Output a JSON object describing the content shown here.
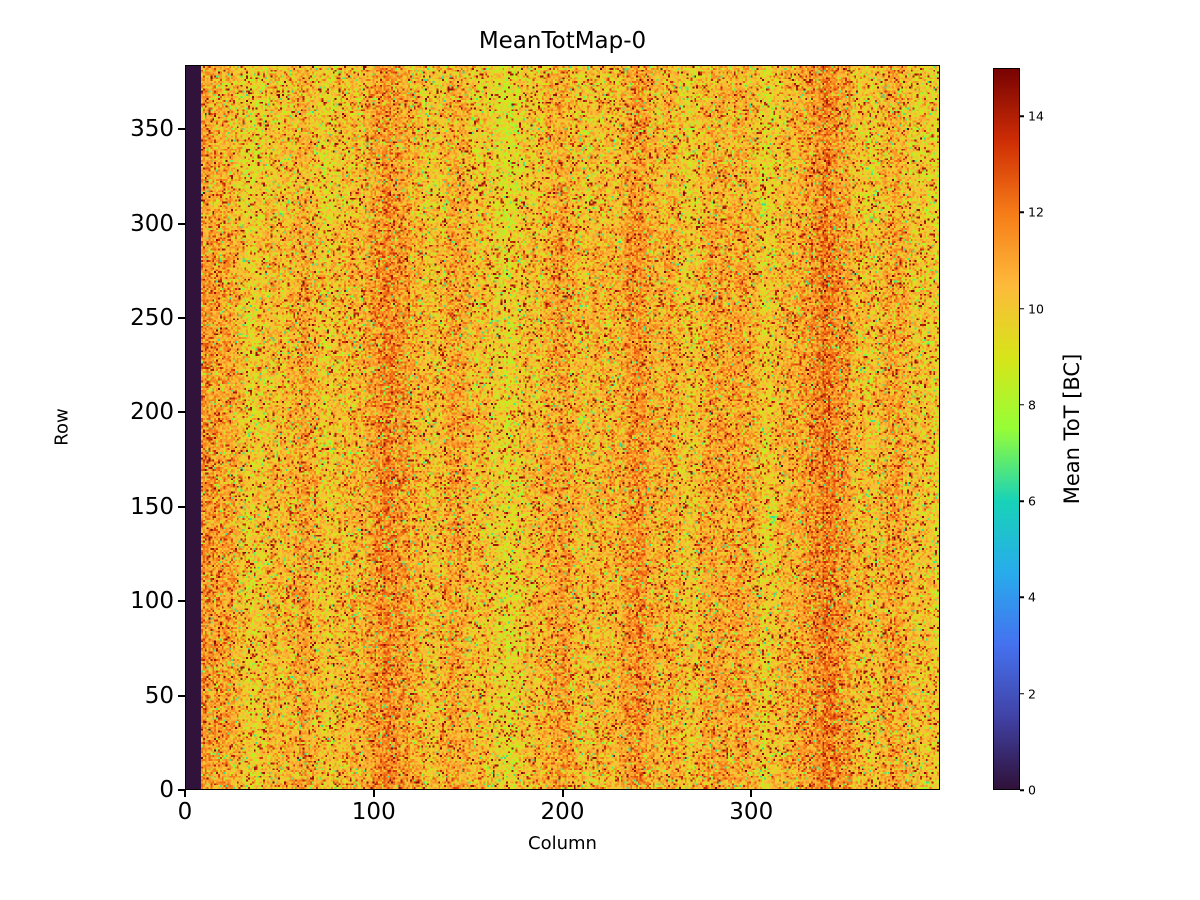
{
  "figure": {
    "background_color": "#ffffff",
    "axis_color": "#000000"
  },
  "chart_data": {
    "type": "heatmap",
    "title": "MeanTotMap-0",
    "xlabel": "Column",
    "ylabel": "Row",
    "x_range": [
      0,
      400
    ],
    "y_range": [
      0,
      384
    ],
    "xticks": [
      0,
      100,
      200,
      300
    ],
    "yticks": [
      0,
      50,
      100,
      150,
      200,
      250,
      300,
      350
    ],
    "grid": false,
    "colorbar": {
      "label": "Mean ToT [BC]",
      "ticks": [
        0,
        2,
        4,
        6,
        8,
        10,
        12,
        14
      ],
      "vmin": 0,
      "vmax": 15,
      "colormap": "turbo",
      "position": "right"
    },
    "data_summary": {
      "grid_size_cols_rows": [
        400,
        384
      ],
      "dead_column_range": [
        0,
        8
      ],
      "dead_column_value": 0,
      "typical_value_mean": 10.6,
      "typical_value_sd": 1.5,
      "value_min": 0,
      "value_max": 15,
      "pattern": "per-pixel speckle noise around 9-13 BC with scattered green (~7 BC) and dark-red (~14 BC) pixels, faint vertical banding, brighter orange band near column 345, dead (zero) columns 0-8 at left edge"
    }
  }
}
